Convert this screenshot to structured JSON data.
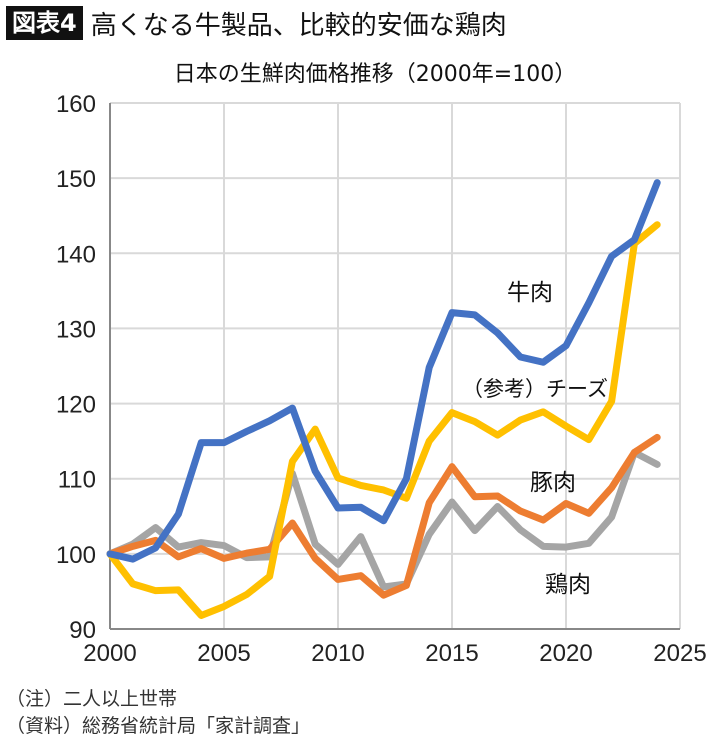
{
  "header": {
    "badge": "図表4",
    "title": "高くなる牛製品、比較的安価な鶏肉"
  },
  "notes": [
    "（注）二人以上世帯",
    "（資料）総務省統計局「家計調査」"
  ],
  "chart_data": {
    "type": "line",
    "title": "日本の生鮮肉価格推移（2000年=100）",
    "x": [
      2000,
      2001,
      2002,
      2003,
      2004,
      2005,
      2006,
      2007,
      2008,
      2009,
      2010,
      2011,
      2012,
      2013,
      2014,
      2015,
      2016,
      2017,
      2018,
      2019,
      2020,
      2021,
      2022,
      2023,
      2024
    ],
    "xlim": [
      2000,
      2025
    ],
    "ylim": [
      90,
      160
    ],
    "xticks": [
      2000,
      2005,
      2010,
      2015,
      2020,
      2025
    ],
    "yticks": [
      90,
      100,
      110,
      120,
      130,
      140,
      150,
      160
    ],
    "grid": true,
    "series": [
      {
        "name": "牛肉",
        "color": "#4472C4",
        "values": [
          100,
          99.3,
          100.8,
          105.3,
          114.8,
          114.8,
          116.3,
          117.7,
          119.4,
          111,
          106.1,
          106.2,
          104.4,
          110,
          124.8,
          132.1,
          131.8,
          129.4,
          126.2,
          125.5,
          127.7,
          133.4,
          139.6,
          141.8,
          149.4
        ]
      },
      {
        "name": "（参考）チーズ",
        "color": "#FFC000",
        "values": [
          100,
          96,
          95.1,
          95.2,
          91.8,
          93,
          94.6,
          97,
          112.3,
          116.6,
          110.1,
          109.1,
          108.5,
          107.4,
          115,
          118.8,
          117.6,
          115.8,
          117.8,
          118.9,
          117,
          115.2,
          120.3,
          141.3,
          143.8
        ]
      },
      {
        "name": "豚肉",
        "color": "#ED7D31",
        "values": [
          100,
          101,
          101.8,
          99.6,
          100.7,
          99.4,
          100.1,
          100.6,
          104.1,
          99.4,
          96.6,
          97.1,
          94.5,
          95.8,
          106.8,
          111.6,
          107.6,
          107.7,
          105.7,
          104.5,
          106.7,
          105.4,
          108.8,
          113.5,
          115.5
        ]
      },
      {
        "name": "鶏肉",
        "color": "#A5A5A5",
        "values": [
          100,
          101.3,
          103.5,
          100.9,
          101.5,
          101.1,
          99.5,
          99.6,
          110.7,
          101.3,
          98.6,
          102.3,
          95.6,
          96,
          102.6,
          106.9,
          103.1,
          106.3,
          103.2,
          101,
          100.9,
          101.4,
          104.9,
          113.5,
          111.9
        ]
      }
    ]
  }
}
